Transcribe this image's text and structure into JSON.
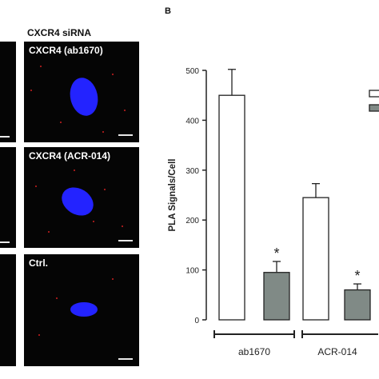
{
  "figure": {
    "column_header": "CXCR4 siRNA",
    "panel_b_label": "B",
    "panels": [
      {
        "label": "CXCR4 (ab1670)"
      },
      {
        "label": "CXCR4 (ACR-014)"
      },
      {
        "label": "Ctrl."
      }
    ]
  },
  "chart_data": {
    "type": "bar",
    "ylabel": "PLA Signals/Cell",
    "ylim": [
      0,
      500
    ],
    "yticks": [
      0,
      100,
      200,
      300,
      400,
      500
    ],
    "groups": [
      "ab1670",
      "ACR-014"
    ],
    "series": [
      {
        "values": [
          450,
          245
        ],
        "errors": [
          52,
          28
        ],
        "color": "#ffffff"
      },
      {
        "values": [
          95,
          60
        ],
        "errors": [
          22,
          12
        ],
        "color": "#808a86"
      }
    ],
    "significance": [
      "",
      "*",
      "",
      "*"
    ],
    "grid": false
  }
}
